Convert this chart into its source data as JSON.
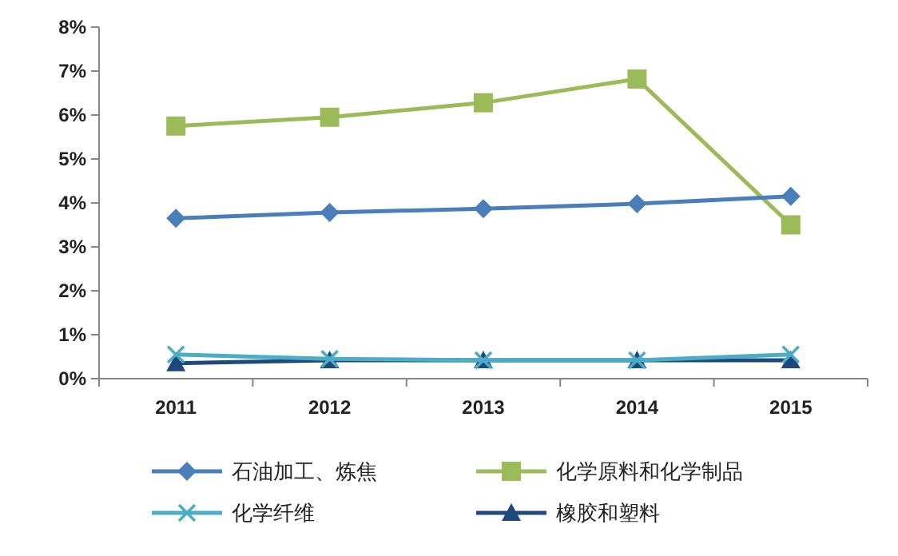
{
  "chart_data": {
    "type": "line",
    "categories": [
      "2011",
      "2012",
      "2013",
      "2014",
      "2015"
    ],
    "ylim": [
      0,
      8
    ],
    "yticks": [
      {
        "value": 0,
        "label": "0%"
      },
      {
        "value": 1,
        "label": "1%"
      },
      {
        "value": 2,
        "label": "2%"
      },
      {
        "value": 3,
        "label": "3%"
      },
      {
        "value": 4,
        "label": "4%"
      },
      {
        "value": 5,
        "label": "5%"
      },
      {
        "value": 6,
        "label": "6%"
      },
      {
        "value": 7,
        "label": "7%"
      },
      {
        "value": 8,
        "label": "8%"
      }
    ],
    "legend": "bottom",
    "grid": false,
    "series": [
      {
        "name": "石油加工、炼焦",
        "color": "#4a7ebb",
        "marker": "diamond",
        "values": [
          3.65,
          3.78,
          3.87,
          3.98,
          4.15
        ]
      },
      {
        "name": "化学原料和化学制品",
        "color": "#9bbb59",
        "marker": "square",
        "values": [
          5.75,
          5.95,
          6.28,
          6.82,
          3.5
        ]
      },
      {
        "name": "化学纤维",
        "color": "#4bacc6",
        "marker": "cross",
        "values": [
          0.55,
          0.45,
          0.42,
          0.42,
          0.55
        ]
      },
      {
        "name": "橡胶和塑料",
        "color": "#1f497d",
        "marker": "triangle",
        "values": [
          0.35,
          0.42,
          0.42,
          0.42,
          0.42
        ]
      }
    ]
  }
}
